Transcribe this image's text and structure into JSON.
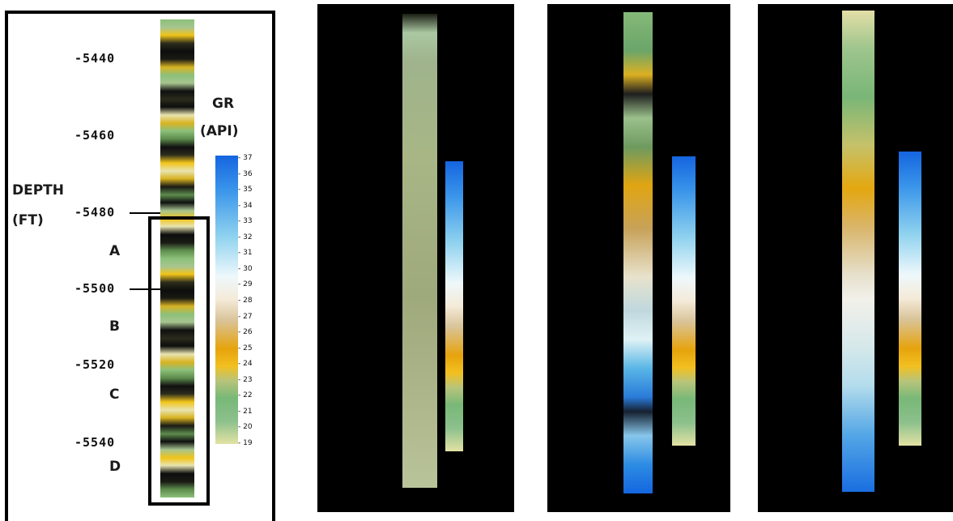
{
  "panel_main": {
    "depth_title": "DEPTH",
    "depth_unit": "(FT)",
    "gr_title": "GR",
    "gr_unit": "(API)",
    "depth_ticks": [
      "-5440",
      "-5460",
      "-5480",
      "-5500",
      "-5520",
      "-5540"
    ],
    "zones": [
      "A",
      "B",
      "C",
      "D"
    ],
    "scale_ticks": [
      "37",
      "36",
      "35",
      "34",
      "33",
      "32",
      "31",
      "30",
      "29",
      "28",
      "27",
      "26",
      "25",
      "24",
      "23",
      "22",
      "21",
      "20",
      "19"
    ]
  },
  "colors": {
    "background_dark": "#000000",
    "frame": "#000000",
    "scale_top": "#1565e0",
    "scale_mid": "#eef8fb",
    "scale_orange": "#e6a30c",
    "scale_green": "#78b878",
    "scale_bottom": "#e3e2a4"
  }
}
